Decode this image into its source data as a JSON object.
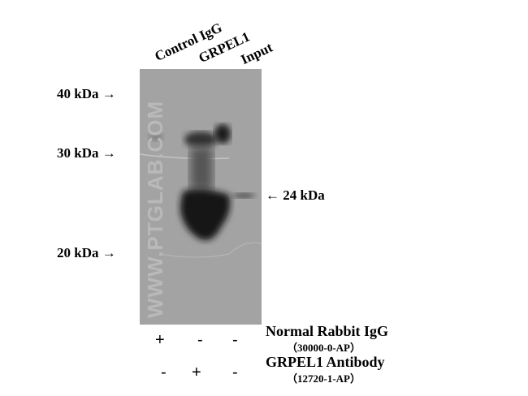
{
  "lanes": [
    "Control IgG",
    "GRPEL1",
    "Input"
  ],
  "markers": [
    "40 kDa",
    "30 kDa",
    "20 kDa"
  ],
  "target_band": "24 kDa",
  "watermark": "WWW.PTGLAB.COM",
  "rows": [
    {
      "name": "Normal Rabbit IgG",
      "catalog": "（30000-0-AP）",
      "signs": [
        "+",
        "-",
        "-"
      ]
    },
    {
      "name": "GRPEL1 Antibody",
      "catalog": "（12720-1-AP）",
      "signs": [
        "-",
        "+",
        "-"
      ]
    }
  ]
}
